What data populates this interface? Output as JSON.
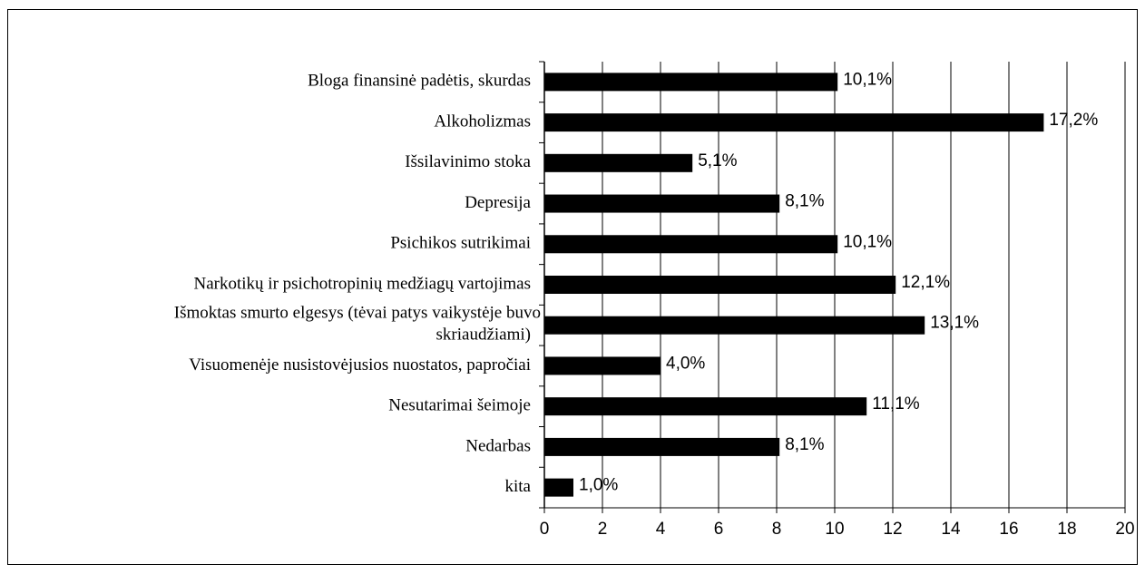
{
  "chart_data": {
    "type": "bar",
    "orientation": "horizontal",
    "categories": [
      "Bloga finansinė padėtis, skurdas",
      "Alkoholizmas",
      "Išsilavinimo stoka",
      "Depresija",
      "Psichikos sutrikimai",
      "Narkotikų ir psichotropinių medžiagų vartojimas",
      "Išmoktas smurto elgesys (tėvai patys vaikystėje buvo\nskriaudžiami)",
      "Visuomenėje nusistovėjusios nuostatos, papročiai",
      "Nesutarimai šeimoje",
      "Nedarbas",
      "kita"
    ],
    "values": [
      10.1,
      17.2,
      5.1,
      8.1,
      10.1,
      12.1,
      13.1,
      4.0,
      11.1,
      8.1,
      1.0
    ],
    "value_labels": [
      "10,1%",
      "17,2%",
      "5,1%",
      "8,1%",
      "10,1%",
      "12,1%",
      "13,1%",
      "4,0%",
      "11,1%",
      "8,1%",
      "1,0%"
    ],
    "color": "#000000",
    "xlim": [
      0,
      20
    ],
    "xticks": [
      0,
      2,
      4,
      6,
      8,
      10,
      12,
      14,
      16,
      18,
      20
    ],
    "grid": true
  }
}
